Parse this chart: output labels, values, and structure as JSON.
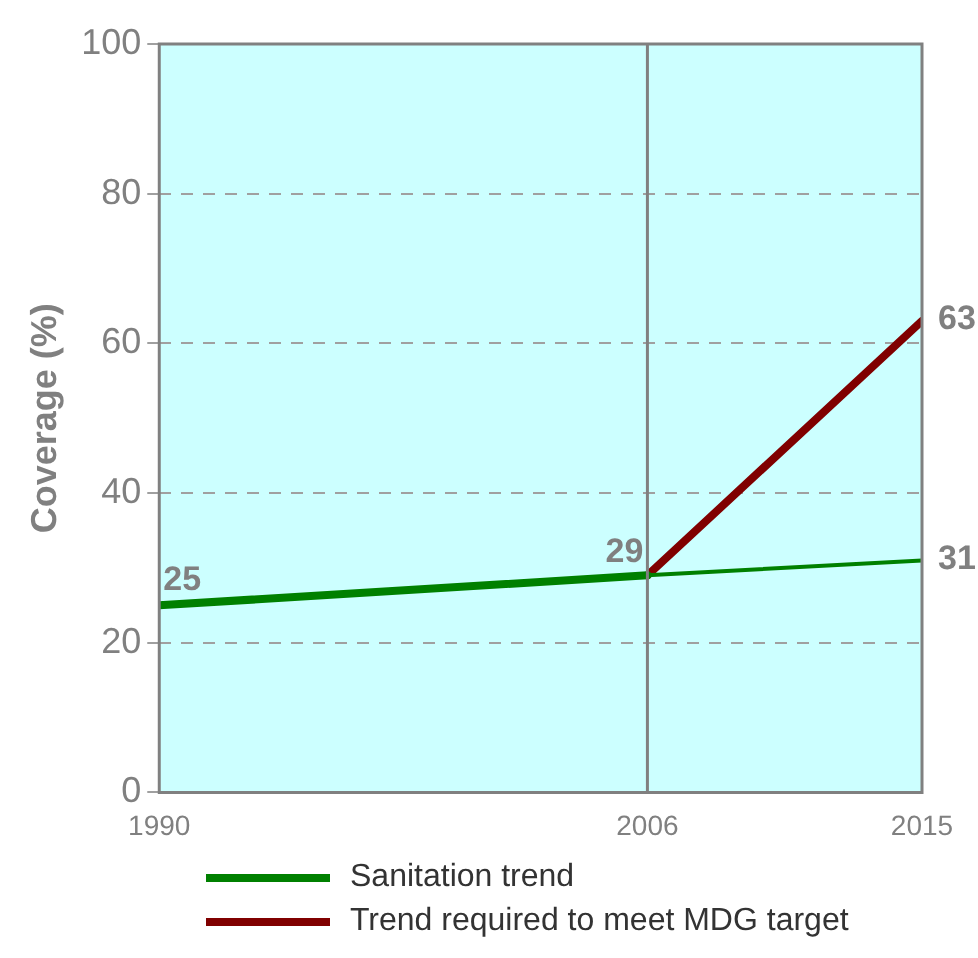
{
  "chart_data": {
    "type": "line",
    "ylabel": "Coverage (%)",
    "xlim": [
      1990,
      2015
    ],
    "xticks": [
      1990,
      2006,
      2015
    ],
    "ylim": [
      0,
      100
    ],
    "yticks": [
      0,
      20,
      40,
      60,
      80,
      100
    ],
    "grid": "y",
    "legend": "bottom",
    "marker": "none",
    "line_style": "solid",
    "ref_lines": [
      {
        "axis": "x",
        "value": 2006,
        "color": "#808080"
      }
    ],
    "series": [
      {
        "name": "Sanitation trend",
        "color": "#008000",
        "x": [
          1990,
          2006,
          2015
        ],
        "values": [
          25,
          29,
          31
        ],
        "value_labels": [
          "25",
          "29",
          "31"
        ]
      },
      {
        "name": "Trend required to meet MDG target",
        "color": "#800000",
        "x": [
          2006,
          2015
        ],
        "values": [
          29,
          63
        ],
        "value_labels": [
          null,
          "63"
        ]
      }
    ]
  }
}
